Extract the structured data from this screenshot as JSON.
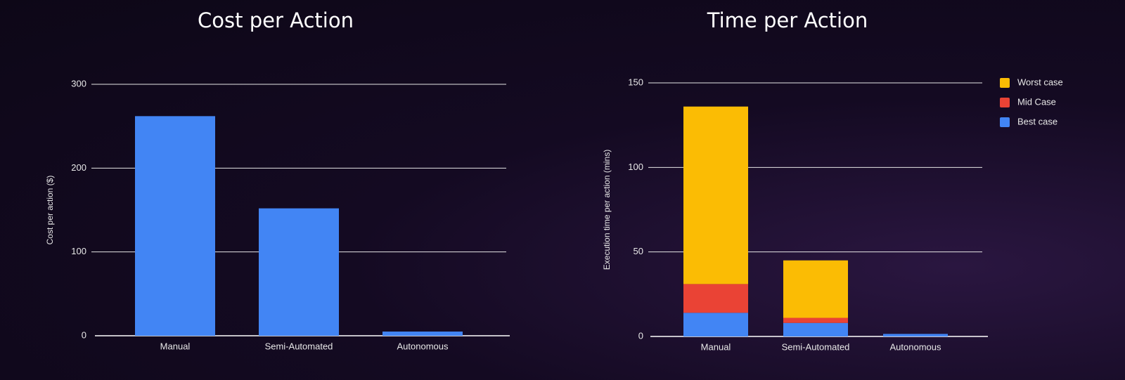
{
  "chart_data": [
    {
      "type": "bar",
      "title": "Cost per Action",
      "y_label": "Cost per action ($)",
      "categories": [
        "Manual",
        "Semi-Automated",
        "Autonomous"
      ],
      "values": [
        262,
        152,
        5
      ],
      "color": "#4285f4",
      "ylim": [
        0,
        300
      ],
      "yticks": [
        0,
        100,
        200,
        300
      ],
      "grid": true
    },
    {
      "type": "bar",
      "stacked": true,
      "title": "Time per Action",
      "y_label": "Execution time per action (mins)",
      "categories": [
        "Manual",
        "Semi-Automated",
        "Autonomous"
      ],
      "series": [
        {
          "name": "Best case",
          "color": "#4285f4",
          "values": [
            14,
            8,
            1.5
          ]
        },
        {
          "name": "Mid Case",
          "color": "#ea4335",
          "values": [
            17,
            3,
            0
          ]
        },
        {
          "name": "Worst case",
          "color": "#fbbc04",
          "values": [
            105,
            34,
            0
          ]
        }
      ],
      "ylim": [
        0,
        150
      ],
      "yticks": [
        0,
        50,
        100,
        150
      ],
      "grid": true,
      "legend": "right"
    }
  ]
}
